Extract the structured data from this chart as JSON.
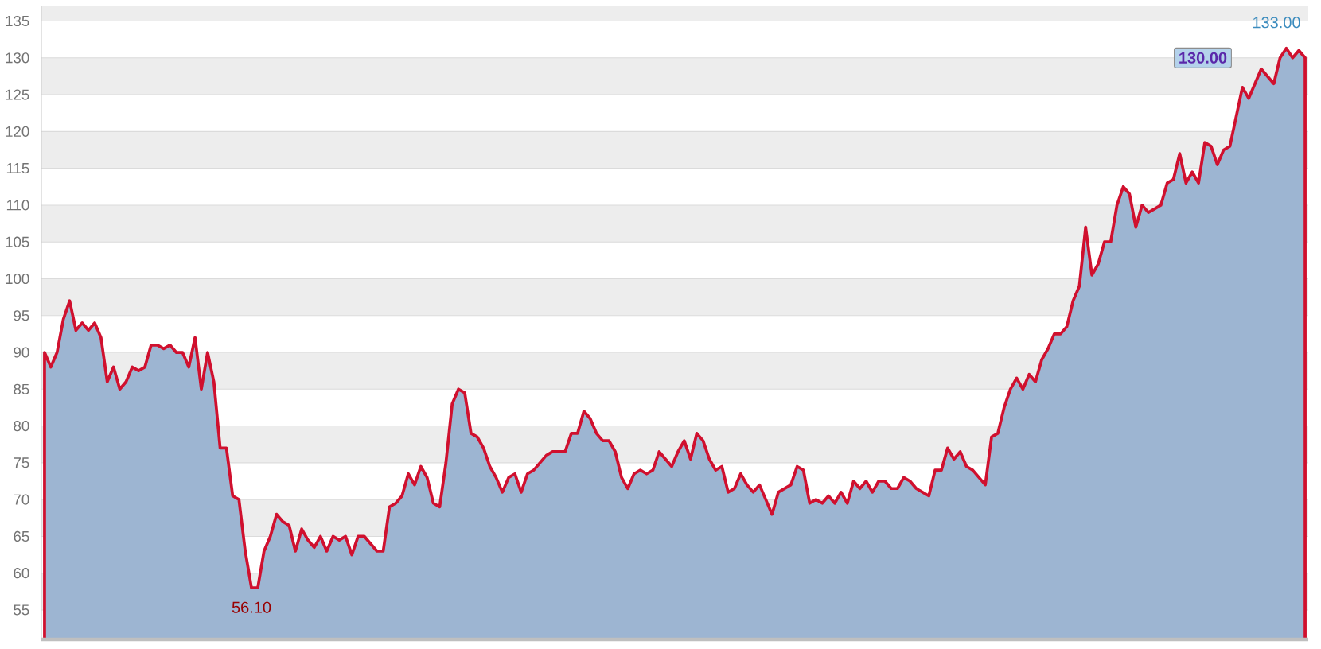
{
  "chart_data": {
    "type": "area",
    "categories": [
      null,
      null,
      null,
      null,
      null,
      null,
      null,
      null,
      null,
      null,
      null,
      null,
      null,
      null,
      null,
      null,
      null,
      null,
      null,
      null,
      null,
      null,
      null,
      null,
      null,
      null,
      null,
      null,
      null,
      null,
      null,
      null,
      null,
      null,
      null,
      null,
      null,
      null,
      null,
      null,
      null,
      null,
      null,
      null,
      null,
      null,
      null,
      null,
      null,
      null,
      null,
      null,
      null,
      null,
      null,
      null,
      null,
      null,
      null,
      null,
      null,
      null,
      null,
      null,
      null,
      null,
      null,
      null,
      null,
      null,
      null,
      null,
      null,
      null,
      null,
      null,
      null,
      null,
      null,
      null,
      null,
      null,
      null,
      null,
      null,
      null,
      null,
      null,
      null,
      null,
      null,
      null,
      null,
      null,
      null,
      null,
      null,
      null,
      null,
      null,
      null,
      null,
      null,
      null,
      null,
      null,
      null,
      null,
      null,
      null,
      null,
      null,
      null,
      null,
      null,
      null,
      null,
      null,
      null,
      null,
      null,
      null,
      null,
      null,
      null,
      null,
      null,
      null,
      null,
      null,
      null,
      null,
      null,
      null,
      null,
      null,
      null,
      null,
      null,
      null,
      null,
      null,
      null,
      null,
      null,
      null,
      null,
      null,
      null,
      null,
      null,
      null,
      null,
      null,
      null,
      null,
      null,
      null,
      null,
      null,
      null,
      null,
      null,
      null,
      null,
      null,
      null,
      null,
      null,
      null,
      null,
      null,
      null,
      null,
      null,
      null,
      null,
      null,
      null,
      null,
      null,
      null,
      null,
      null,
      null,
      null,
      null,
      null,
      null,
      null,
      null,
      null,
      null,
      null,
      null,
      null,
      null,
      null,
      null,
      null,
      null,
      null
    ],
    "series": [
      {
        "color": "#d0102e",
        "values": [
          90,
          88,
          90,
          94.5,
          97,
          93,
          94,
          93,
          94,
          92,
          86,
          88,
          85,
          86,
          88,
          87.5,
          88,
          91,
          91,
          90.5,
          91,
          90,
          90,
          88,
          92,
          85,
          90,
          86,
          77,
          77,
          70.5,
          70,
          63,
          58,
          58,
          63,
          65,
          68,
          67,
          66.5,
          63,
          66,
          64.5,
          63.5,
          65,
          63,
          65,
          64.5,
          65,
          62.5,
          65,
          65,
          64,
          63,
          63,
          69,
          69.5,
          70.5,
          73.5,
          72,
          74.5,
          73,
          69.5,
          69,
          75,
          83,
          85,
          84.5,
          79,
          78.5,
          77,
          74.5,
          73,
          71,
          73,
          73.5,
          71,
          73.5,
          74,
          75,
          76,
          76.5,
          76.5,
          76.5,
          79,
          79,
          82,
          81,
          79,
          78,
          78,
          76.5,
          73,
          71.5,
          73.5,
          74,
          73.5,
          74,
          76.5,
          75.5,
          74.5,
          76.5,
          78,
          75.5,
          79,
          78,
          75.5,
          74,
          74.5,
          71,
          71.5,
          73.5,
          72,
          71,
          72,
          70,
          68,
          71,
          71.5,
          72,
          74.5,
          74,
          69.5,
          70,
          69.5,
          70.5,
          69.5,
          71,
          69.5,
          72.5,
          71.5,
          72.5,
          71,
          72.5,
          72.5,
          71.5,
          71.5,
          73,
          72.5,
          71.5,
          71,
          70.5,
          74,
          74,
          77,
          75.5,
          76.5,
          74.5,
          74,
          73,
          72,
          78.5,
          79,
          82.5,
          85,
          86.5,
          85,
          87,
          86,
          89,
          90.5,
          92.5,
          92.5,
          93.5,
          97,
          99,
          107,
          100.5,
          102,
          105,
          105,
          110,
          112.5,
          111.5,
          107,
          110,
          109,
          109.5,
          110,
          113,
          113.5,
          117,
          113,
          114.5,
          113,
          118.5,
          118,
          115.5,
          117.5,
          118,
          122,
          126,
          124.5,
          126.5,
          128.5,
          127.5,
          126.5,
          130,
          131.3,
          130,
          131,
          130
        ]
      }
    ],
    "ylim": [
      51,
      137
    ],
    "yticks": [
      55,
      60,
      65,
      70,
      75,
      80,
      85,
      90,
      95,
      100,
      105,
      110,
      115,
      120,
      125,
      130,
      135
    ],
    "grid": "y",
    "tick_labels": "y",
    "annotations": [
      "56.10",
      "133.00",
      "130.00"
    ]
  }
}
